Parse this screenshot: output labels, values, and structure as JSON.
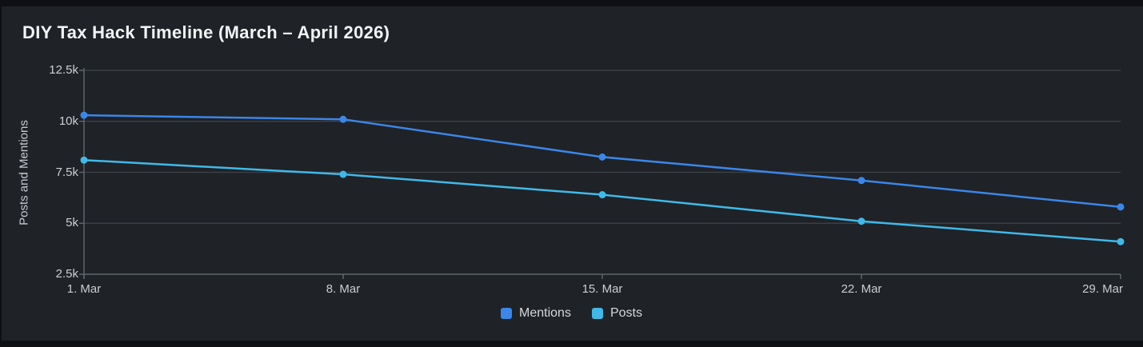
{
  "theme": {
    "page_background": "#0e1013",
    "card_background": "#1f2227",
    "gridline_color": "#3a3f45",
    "axis_color": "#5d646c",
    "tick_text_color": "#ccd1d6",
    "title_color": "#f2f4f5"
  },
  "chart_data": {
    "type": "line",
    "title": "DIY Tax Hack Timeline (March – April 2026)",
    "xlabel": "",
    "ylabel": "Posts and Mentions",
    "categories": [
      "1. Mar",
      "8. Mar",
      "15. Mar",
      "22. Mar",
      "29. Mar"
    ],
    "series": [
      {
        "name": "Mentions",
        "color": "#3b86e8",
        "values": [
          10300,
          10100,
          8250,
          7100,
          5800
        ]
      },
      {
        "name": "Posts",
        "color": "#40b9e8",
        "values": [
          8100,
          7400,
          6400,
          5100,
          4100
        ]
      }
    ],
    "ylim": [
      2500,
      12500
    ],
    "yticks": [
      {
        "value": 2500,
        "label": "2.5k"
      },
      {
        "value": 5000,
        "label": "5k"
      },
      {
        "value": 7500,
        "label": "7.5k"
      },
      {
        "value": 10000,
        "label": "10k"
      },
      {
        "value": 12500,
        "label": "12.5k"
      }
    ],
    "grid": true,
    "legend_position": "bottom"
  }
}
